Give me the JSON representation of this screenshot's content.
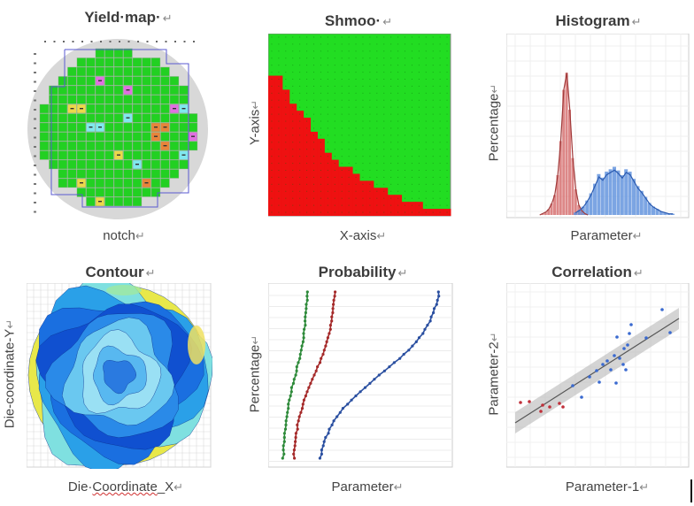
{
  "chart_data": [
    {
      "type": "heatmap",
      "title": "Yield·map·",
      "return_mark": "↵",
      "xlabel": "notch",
      "description_colors": {
        "pass": "#22d022",
        "fail_orange": "#e8843a",
        "fail_pink": "#e070e0",
        "fail_yellow": "#ecd84a",
        "fail_cyan": "#80e8f0",
        "wafer": "#d8d8d8"
      }
    },
    {
      "type": "heatmap",
      "title": "Shmoo·",
      "return_mark": "↵",
      "xlabel": "X-axis",
      "ylabel": "Y-axis",
      "boundary_steps": [
        15,
        15,
        13,
        12,
        11,
        10,
        9,
        8,
        7,
        6,
        5.5,
        5,
        4.5,
        4,
        3.6,
        3.2,
        2.8,
        2.4,
        2.1,
        1.8,
        1.5,
        1.3,
        1.1,
        0.9,
        0.7,
        0.5
      ],
      "colors": {
        "pass": "#22dd22",
        "fail": "#ee1111"
      }
    },
    {
      "type": "bar",
      "title": "Histogram",
      "return_mark": "↵",
      "xlabel": "Parameter",
      "ylabel": "Percentage",
      "series": [
        {
          "color": "#d46a6a",
          "values": [
            0,
            1,
            2,
            4,
            8,
            14,
            28,
            52,
            88,
            100,
            74,
            40,
            18,
            7,
            3,
            1,
            0
          ]
        },
        {
          "color": "#5b8fdc",
          "values": [
            2,
            4,
            7,
            12,
            18,
            26,
            34,
            31,
            36,
            38,
            40,
            37,
            33,
            38,
            36,
            30,
            24,
            20,
            15,
            10,
            7,
            5,
            3,
            2,
            1,
            1
          ]
        }
      ]
    },
    {
      "type": "heatmap",
      "title": "Contour",
      "return_mark": "↵",
      "xlabel_a": "Die·",
      "xlabel_b": "Coordinate",
      "xlabel_c": "_X",
      "ylabel": "Die-coordinate-Y"
    },
    {
      "type": "line",
      "title": "Probability",
      "return_mark": "↵",
      "xlabel": "Parameter",
      "ylabel": "Percentage",
      "series": [
        {
          "color": "#2e8a3a",
          "x_range": [
            320,
            347
          ]
        },
        {
          "color": "#a52a2a",
          "x_range": [
            332,
            378
          ]
        },
        {
          "color": "#2a4fa0",
          "x_range": [
            362,
            496
          ]
        }
      ]
    },
    {
      "type": "scatter",
      "title": "Correlation",
      "return_mark": "↵",
      "xlabel": "Parameter-1",
      "ylabel": "Parameter-2",
      "red_points": [
        [
          588,
          455
        ],
        [
          598,
          454
        ],
        [
          611,
          465
        ],
        [
          613,
          458
        ],
        [
          621,
          460
        ],
        [
          632,
          456
        ],
        [
          636,
          460
        ]
      ],
      "blue_points": [
        [
          647,
          436
        ],
        [
          657,
          449
        ],
        [
          666,
          426
        ],
        [
          674,
          419
        ],
        [
          677,
          432
        ],
        [
          681,
          412
        ],
        [
          686,
          408
        ],
        [
          690,
          418
        ],
        [
          694,
          402
        ],
        [
          696,
          433
        ],
        [
          697,
          381
        ],
        [
          700,
          405
        ],
        [
          704,
          412
        ],
        [
          705,
          394
        ],
        [
          707,
          418
        ],
        [
          709,
          390
        ],
        [
          711,
          377
        ],
        [
          713,
          367
        ],
        [
          730,
          382
        ],
        [
          748,
          350
        ],
        [
          757,
          376
        ]
      ]
    }
  ]
}
